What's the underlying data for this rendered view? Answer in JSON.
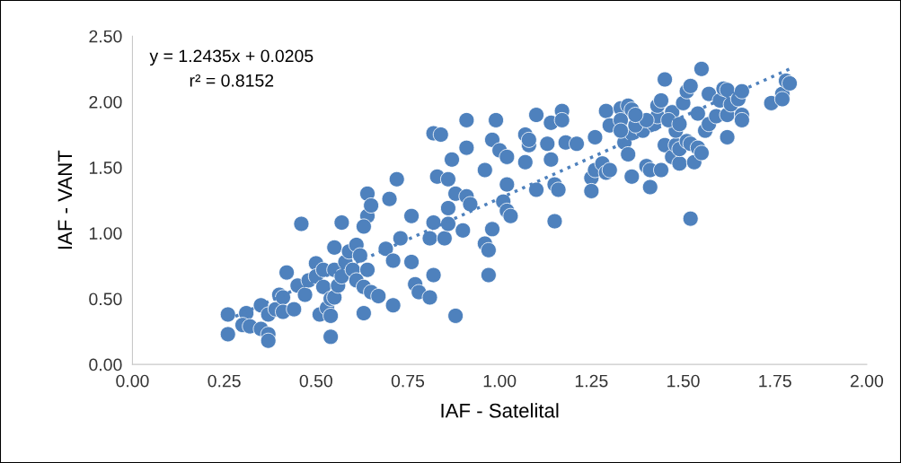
{
  "chart_data": {
    "type": "scatter",
    "xlabel": "IAF - Satelital",
    "ylabel": "IAF - VANT",
    "xlim": [
      0,
      2
    ],
    "xticks": [
      {
        "value": 0,
        "label": "0.00"
      },
      {
        "value": 0.25,
        "label": "0.25"
      },
      {
        "value": 0.5,
        "label": "0.50"
      },
      {
        "value": 0.75,
        "label": "0.75"
      },
      {
        "value": 1,
        "label": "1.00"
      },
      {
        "value": 1.25,
        "label": "1.25"
      },
      {
        "value": 1.5,
        "label": "1.50"
      },
      {
        "value": 1.75,
        "label": "1.75"
      },
      {
        "value": 2,
        "label": "2.00"
      }
    ],
    "ylim": [
      0,
      2.5
    ],
    "yticks": [
      {
        "value": 0,
        "label": "0.00"
      },
      {
        "value": 0.5,
        "label": "0.50"
      },
      {
        "value": 1,
        "label": "1.00"
      },
      {
        "value": 1.5,
        "label": "1.50"
      },
      {
        "value": 2,
        "label": "2.00"
      },
      {
        "value": 2.5,
        "label": "2.50"
      }
    ],
    "grid": false,
    "legend": false,
    "marker": "circle",
    "annotations": [
      "y = 1.2435x + 0.0205",
      "r² = 0.8152"
    ],
    "series": [
      {
        "color": "#4e81bd",
        "x": [
          0.26,
          0.26,
          0.31,
          0.3,
          0.32,
          0.35,
          0.37,
          0.37,
          0.35,
          0.37,
          0.39,
          0.4,
          0.41,
          0.41,
          0.42,
          0.44,
          0.45,
          0.46,
          0.47,
          0.48,
          0.5,
          0.5,
          0.52,
          0.52,
          0.51,
          0.53,
          0.54,
          0.54,
          0.55,
          0.54,
          0.55,
          0.55,
          0.56,
          0.57,
          0.57,
          0.58,
          0.59,
          0.6,
          0.61,
          0.61,
          0.62,
          0.63,
          0.63,
          0.64,
          0.64,
          0.64,
          0.65,
          0.63,
          0.65,
          0.67,
          0.69,
          0.71,
          0.7,
          0.71,
          0.72,
          0.73,
          0.76,
          0.76,
          0.77,
          0.78,
          0.81,
          0.82,
          0.81,
          0.82,
          0.82,
          0.84,
          0.83,
          0.85,
          0.86,
          0.86,
          0.87,
          0.88,
          0.86,
          0.88,
          0.9,
          0.91,
          0.91,
          0.91,
          0.92,
          0.96,
          0.96,
          0.97,
          0.98,
          0.97,
          0.98,
          0.99,
          1.0,
          1.01,
          1.02,
          1.02,
          1.02,
          1.03,
          1.07,
          1.08,
          1.07,
          1.08,
          1.1,
          1.1,
          1.13,
          1.14,
          1.14,
          1.15,
          1.15,
          1.16,
          1.17,
          1.17,
          1.18,
          1.21,
          1.26,
          1.25,
          1.25,
          1.26,
          1.28,
          1.29,
          1.3,
          1.29,
          1.3,
          1.33,
          1.33,
          1.34,
          1.35,
          1.35,
          1.36,
          1.36,
          1.36,
          1.39,
          1.4,
          1.41,
          1.41,
          1.42,
          1.43,
          1.43,
          1.44,
          1.44,
          1.45,
          1.45,
          1.47,
          1.47,
          1.48,
          1.48,
          1.49,
          1.49,
          1.51,
          1.5,
          1.51,
          1.52,
          1.52,
          1.52,
          1.53,
          1.54,
          1.54,
          1.55,
          1.56,
          1.55,
          1.57,
          1.57,
          1.59,
          1.6,
          1.61,
          1.62,
          1.62,
          1.62,
          1.63,
          1.65,
          1.66,
          1.66,
          1.66,
          1.74,
          1.77,
          1.78,
          1.79,
          1.77,
          1.37,
          1.4,
          1.46,
          1.37,
          1.33,
          1.49
        ],
        "values": [
          0.38,
          0.23,
          0.39,
          0.3,
          0.29,
          0.27,
          0.23,
          0.18,
          0.45,
          0.38,
          0.42,
          0.53,
          0.51,
          0.4,
          0.7,
          0.42,
          0.6,
          1.07,
          0.53,
          0.64,
          0.77,
          0.67,
          0.59,
          0.72,
          0.38,
          0.43,
          0.5,
          0.21,
          0.51,
          0.37,
          0.72,
          0.89,
          0.6,
          0.67,
          1.08,
          0.78,
          0.86,
          0.72,
          0.64,
          0.91,
          0.83,
          0.59,
          0.39,
          0.72,
          1.13,
          1.3,
          1.21,
          1.05,
          0.55,
          0.52,
          0.88,
          0.45,
          1.26,
          0.79,
          1.41,
          0.96,
          1.13,
          0.78,
          0.61,
          0.55,
          0.51,
          0.68,
          0.96,
          1.08,
          1.76,
          1.75,
          1.43,
          0.96,
          1.19,
          1.41,
          1.56,
          0.37,
          1.07,
          1.3,
          1.02,
          1.28,
          1.86,
          1.65,
          1.22,
          0.92,
          1.48,
          0.87,
          1.71,
          0.68,
          1.03,
          1.86,
          1.63,
          1.24,
          1.37,
          1.58,
          1.17,
          1.13,
          1.75,
          1.67,
          1.54,
          1.71,
          1.33,
          1.9,
          1.68,
          1.56,
          1.84,
          1.37,
          1.09,
          1.33,
          1.93,
          1.86,
          1.69,
          1.68,
          1.73,
          1.42,
          1.32,
          1.48,
          1.53,
          1.46,
          1.48,
          1.93,
          1.82,
          1.95,
          1.86,
          1.69,
          1.6,
          1.97,
          1.76,
          1.43,
          1.94,
          1.78,
          1.51,
          1.48,
          1.35,
          1.83,
          1.89,
          1.97,
          2.01,
          1.48,
          1.67,
          2.17,
          1.92,
          1.58,
          1.67,
          1.78,
          1.53,
          1.64,
          1.7,
          1.99,
          2.08,
          2.12,
          1.68,
          1.11,
          1.54,
          1.65,
          1.91,
          2.25,
          1.78,
          1.61,
          2.06,
          1.83,
          1.89,
          2.01,
          2.1,
          1.9,
          2.09,
          1.73,
          1.98,
          2.02,
          1.9,
          1.86,
          2.08,
          1.99,
          2.06,
          2.16,
          2.14,
          2.02,
          1.82,
          1.86,
          1.86,
          1.9,
          1.78,
          1.83
        ]
      },
      {
        "type": "line",
        "color": "#4e81bd",
        "line_style": "dotted",
        "marker": "none",
        "x": [
          0.26,
          1.79
        ],
        "values": [
          0.34,
          2.25
        ]
      }
    ]
  }
}
